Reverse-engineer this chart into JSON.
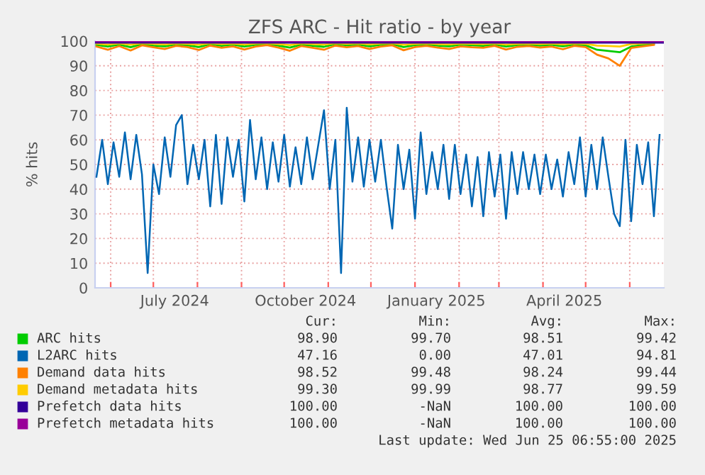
{
  "chart_data": {
    "type": "line",
    "title": "ZFS ARC - Hit ratio - by year",
    "ylabel": "% hits",
    "x": [
      "2024-05-22",
      "2024-05-26",
      "2024-05-30",
      "2024-06-03",
      "2024-06-07",
      "2024-06-11",
      "2024-06-15",
      "2024-06-19",
      "2024-06-23",
      "2024-06-27",
      "2024-07-01",
      "2024-07-05",
      "2024-07-09",
      "2024-07-13",
      "2024-07-17",
      "2024-07-21",
      "2024-07-25",
      "2024-07-29",
      "2024-08-02",
      "2024-08-06",
      "2024-08-10",
      "2024-08-14",
      "2024-08-18",
      "2024-08-22",
      "2024-08-26",
      "2024-08-30",
      "2024-09-03",
      "2024-09-07",
      "2024-09-11",
      "2024-09-15",
      "2024-09-19",
      "2024-09-23",
      "2024-09-27",
      "2024-10-01",
      "2024-10-05",
      "2024-10-09",
      "2024-10-13",
      "2024-10-17",
      "2024-10-21",
      "2024-10-25",
      "2024-10-29",
      "2024-11-02",
      "2024-11-06",
      "2024-11-10",
      "2024-11-14",
      "2024-11-18",
      "2024-11-22",
      "2024-11-26",
      "2024-11-30",
      "2024-12-04",
      "2024-12-08",
      "2024-12-12",
      "2024-12-16",
      "2024-12-20",
      "2024-12-24",
      "2024-12-28",
      "2025-01-01",
      "2025-01-05",
      "2025-01-09",
      "2025-01-13",
      "2025-01-17",
      "2025-01-21",
      "2025-01-25",
      "2025-01-29",
      "2025-02-02",
      "2025-02-06",
      "2025-02-10",
      "2025-02-14",
      "2025-02-18",
      "2025-02-22",
      "2025-02-26",
      "2025-03-02",
      "2025-03-06",
      "2025-03-10",
      "2025-03-14",
      "2025-03-18",
      "2025-03-22",
      "2025-03-26",
      "2025-03-30",
      "2025-04-03",
      "2025-04-07",
      "2025-04-11",
      "2025-04-15",
      "2025-04-19",
      "2025-04-23",
      "2025-04-27",
      "2025-05-01",
      "2025-05-05",
      "2025-05-09",
      "2025-05-13",
      "2025-05-17",
      "2025-05-21",
      "2025-05-25",
      "2025-05-29",
      "2025-06-02",
      "2025-06-06",
      "2025-06-10",
      "2025-06-14",
      "2025-06-18",
      "2025-06-22"
    ],
    "xlim": [
      "2024-05-21",
      "2025-06-25"
    ],
    "xticks": [
      {
        "value": "2024-06-01",
        "label": null
      },
      {
        "value": "2024-07-01",
        "label": null
      },
      {
        "value": "2024-07-16",
        "label": "July 2024"
      },
      {
        "value": "2024-08-01",
        "label": null
      },
      {
        "value": "2024-09-01",
        "label": null
      },
      {
        "value": "2024-10-01",
        "label": null
      },
      {
        "value": "2024-10-16",
        "label": "October 2024"
      },
      {
        "value": "2024-11-01",
        "label": null
      },
      {
        "value": "2024-12-01",
        "label": null
      },
      {
        "value": "2025-01-01",
        "label": null
      },
      {
        "value": "2025-01-16",
        "label": "January 2025"
      },
      {
        "value": "2025-02-01",
        "label": null
      },
      {
        "value": "2025-03-01",
        "label": null
      },
      {
        "value": "2025-04-01",
        "label": null
      },
      {
        "value": "2025-04-16",
        "label": "April 2025"
      },
      {
        "value": "2025-05-01",
        "label": null
      },
      {
        "value": "2025-06-01",
        "label": null
      }
    ],
    "ylim": [
      0,
      100
    ],
    "yticks": [
      0,
      10,
      20,
      30,
      40,
      50,
      60,
      70,
      80,
      90,
      100
    ],
    "grid": true,
    "legend": "bottom",
    "marker": "none",
    "line_style": "solid",
    "series": [
      {
        "name": "ARC hits",
        "color": "#00cc00",
        "x": [
          "2024-05-22",
          "2024-05-30",
          "2024-06-07",
          "2024-06-15",
          "2024-06-23",
          "2024-07-01",
          "2024-07-09",
          "2024-07-17",
          "2024-07-25",
          "2024-08-02",
          "2024-08-10",
          "2024-08-18",
          "2024-08-26",
          "2024-09-03",
          "2024-09-11",
          "2024-09-19",
          "2024-09-27",
          "2024-10-05",
          "2024-10-13",
          "2024-10-21",
          "2024-10-29",
          "2024-11-06",
          "2024-11-14",
          "2024-11-22",
          "2024-11-30",
          "2024-12-08",
          "2024-12-16",
          "2024-12-24",
          "2025-01-01",
          "2025-01-09",
          "2025-01-17",
          "2025-01-25",
          "2025-02-02",
          "2025-02-10",
          "2025-02-18",
          "2025-02-26",
          "2025-03-06",
          "2025-03-14",
          "2025-03-22",
          "2025-03-30",
          "2025-04-07",
          "2025-04-15",
          "2025-04-23",
          "2025-05-01",
          "2025-05-09",
          "2025-05-17",
          "2025-05-25",
          "2025-06-02",
          "2025-06-10",
          "2025-06-18"
        ],
        "values": [
          98.5,
          97.8,
          98.6,
          97.5,
          98.8,
          98.2,
          97.9,
          98.7,
          98.3,
          97.6,
          98.8,
          98.1,
          98.6,
          97.8,
          98.5,
          98.9,
          98.2,
          97.4,
          98.6,
          98.1,
          97.7,
          98.8,
          98.3,
          98.6,
          97.9,
          98.5,
          98.8,
          97.6,
          98.4,
          98.7,
          98.2,
          97.9,
          98.6,
          98.3,
          98.1,
          98.7,
          97.8,
          98.4,
          98.6,
          98.2,
          98.5,
          97.9,
          98.7,
          98.3,
          96.5,
          96.0,
          95.5,
          97.8,
          98.4,
          98.9
        ]
      },
      {
        "name": "L2ARC hits",
        "color": "#0066b3",
        "values": [
          45,
          60,
          42,
          59,
          45,
          63,
          44,
          62,
          46,
          6,
          50,
          38,
          61,
          45,
          66,
          70,
          42,
          58,
          44,
          60,
          33,
          62,
          34,
          61,
          45,
          60,
          35,
          68,
          44,
          61,
          40,
          59,
          43,
          62,
          41,
          57,
          42,
          61,
          44,
          58,
          72,
          40,
          60,
          6,
          73,
          43,
          61,
          41,
          60,
          43,
          60,
          41,
          24,
          58,
          40,
          56,
          28,
          63,
          38,
          55,
          40,
          58,
          36,
          58,
          38,
          54,
          33,
          53,
          29,
          55,
          37,
          54,
          28,
          55,
          38,
          55,
          40,
          54,
          38,
          54,
          40,
          52,
          37,
          55,
          42,
          61,
          37,
          58,
          40,
          61,
          45,
          30,
          25,
          60,
          27,
          58,
          42,
          59,
          29,
          62
        ]
      },
      {
        "name": "Demand data hits",
        "color": "#ff8000",
        "x": [
          "2024-05-22",
          "2024-05-30",
          "2024-06-07",
          "2024-06-15",
          "2024-06-23",
          "2024-07-01",
          "2024-07-09",
          "2024-07-17",
          "2024-07-25",
          "2024-08-02",
          "2024-08-10",
          "2024-08-18",
          "2024-08-26",
          "2024-09-03",
          "2024-09-11",
          "2024-09-19",
          "2024-09-27",
          "2024-10-05",
          "2024-10-13",
          "2024-10-21",
          "2024-10-29",
          "2024-11-06",
          "2024-11-14",
          "2024-11-22",
          "2024-11-30",
          "2024-12-08",
          "2024-12-16",
          "2024-12-24",
          "2025-01-01",
          "2025-01-09",
          "2025-01-17",
          "2025-01-25",
          "2025-02-02",
          "2025-02-10",
          "2025-02-18",
          "2025-02-26",
          "2025-03-06",
          "2025-03-14",
          "2025-03-22",
          "2025-03-30",
          "2025-04-07",
          "2025-04-15",
          "2025-04-23",
          "2025-05-01",
          "2025-05-09",
          "2025-05-17",
          "2025-05-25",
          "2025-06-02",
          "2025-06-10",
          "2025-06-18"
        ],
        "values": [
          97.8,
          96.5,
          98.0,
          96.2,
          98.3,
          97.5,
          96.8,
          98.1,
          97.6,
          96.4,
          98.2,
          97.3,
          97.9,
          96.6,
          97.8,
          98.4,
          97.4,
          96.1,
          98.0,
          97.3,
          96.5,
          98.2,
          97.5,
          98.0,
          96.8,
          97.8,
          98.3,
          96.3,
          97.6,
          98.1,
          97.4,
          96.8,
          97.9,
          97.5,
          97.3,
          98.1,
          96.6,
          97.7,
          98.0,
          97.4,
          97.8,
          96.7,
          98.1,
          97.6,
          94.5,
          93.0,
          90.0,
          97.2,
          97.9,
          98.5
        ]
      },
      {
        "name": "Demand metadata hits",
        "color": "#ffcc00",
        "x": [
          "2024-05-22",
          "2024-05-30",
          "2024-06-07",
          "2024-06-15",
          "2024-06-23",
          "2024-07-01",
          "2024-07-09",
          "2024-07-17",
          "2024-07-25",
          "2024-08-02",
          "2024-08-10",
          "2024-08-18",
          "2024-08-26",
          "2024-09-03",
          "2024-09-11",
          "2024-09-19",
          "2024-09-27",
          "2024-10-05",
          "2024-10-13",
          "2024-10-21",
          "2024-10-29",
          "2024-11-06",
          "2024-11-14",
          "2024-11-22",
          "2024-11-30",
          "2024-12-08",
          "2024-12-16",
          "2024-12-24",
          "2025-01-01",
          "2025-01-09",
          "2025-01-17",
          "2025-01-25",
          "2025-02-02",
          "2025-02-10",
          "2025-02-18",
          "2025-02-26",
          "2025-03-06",
          "2025-03-14",
          "2025-03-22",
          "2025-03-30",
          "2025-04-07",
          "2025-04-15",
          "2025-04-23",
          "2025-05-01",
          "2025-05-09",
          "2025-05-17",
          "2025-05-25",
          "2025-06-02",
          "2025-06-10",
          "2025-06-18"
        ],
        "values": [
          99.0,
          98.6,
          99.1,
          98.5,
          99.2,
          98.9,
          98.7,
          99.1,
          98.9,
          98.5,
          99.2,
          98.8,
          99.0,
          98.6,
          99.0,
          99.2,
          98.8,
          98.4,
          99.1,
          98.8,
          98.6,
          99.2,
          98.9,
          99.1,
          98.7,
          99.0,
          99.2,
          98.5,
          98.9,
          99.1,
          98.8,
          98.7,
          99.0,
          98.9,
          98.8,
          99.1,
          98.6,
          98.9,
          99.0,
          98.8,
          99.0,
          98.7,
          99.1,
          98.9,
          98.2,
          98.0,
          97.8,
          98.8,
          99.0,
          99.3
        ]
      },
      {
        "name": "Prefetch data hits",
        "color": "#330099",
        "x": [
          "2024-05-21",
          "2025-06-25"
        ],
        "values": [
          100,
          100
        ]
      },
      {
        "name": "Prefetch metadata hits",
        "color": "#990099",
        "x": [
          "2024-05-21",
          "2025-06-25"
        ],
        "values": [
          100,
          100
        ]
      }
    ],
    "annotations": [
      "Cur:",
      "Min:",
      "Avg:",
      "Max:",
      "98.90",
      "99.70",
      "98.51",
      "99.42",
      "47.16",
      "0.00",
      "47.01",
      "94.81",
      "98.52",
      "99.48",
      "98.24",
      "99.44",
      "99.30",
      "99.99",
      "98.77",
      "99.59",
      "100.00",
      "-NaN",
      "100.00",
      "100.00",
      "100.00",
      "-NaN",
      "100.00",
      "100.00",
      "Last update: Wed Jun 25 06:55:00 2025"
    ]
  }
}
